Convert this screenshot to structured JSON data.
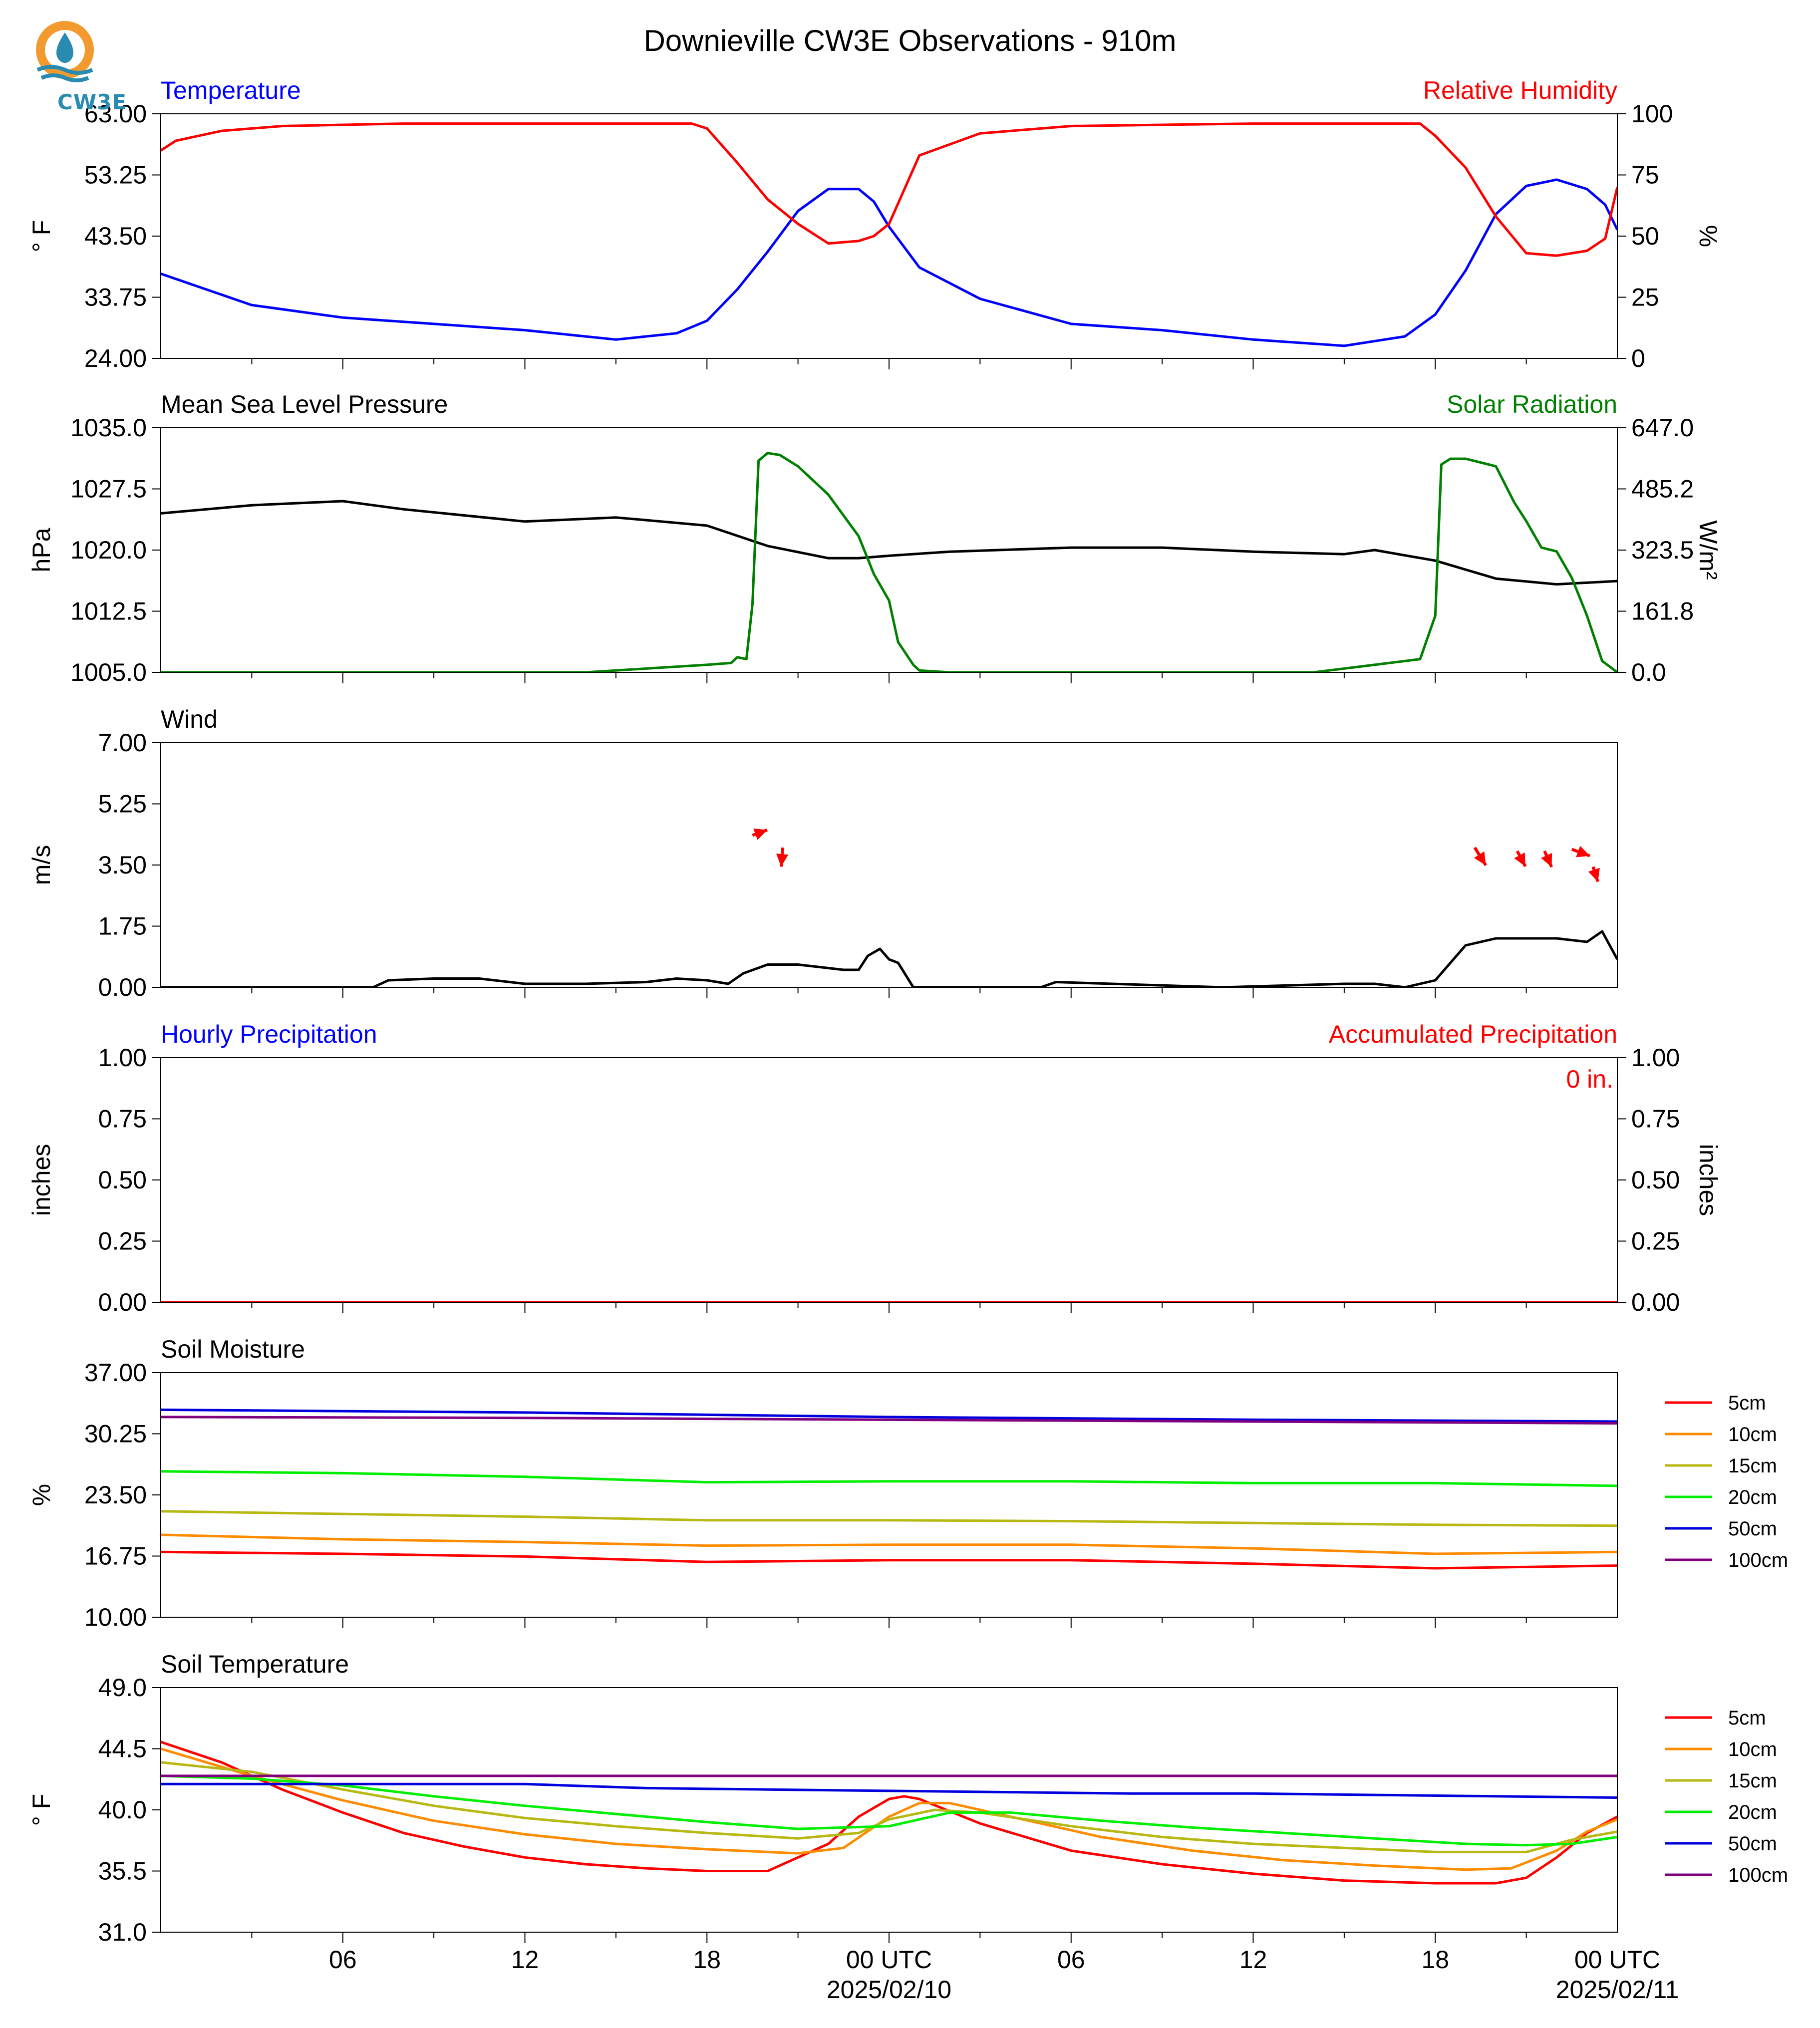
{
  "title": "Downieville CW3E Observations - 910m",
  "logo": {
    "text": "CW3E",
    "colors": {
      "sun": "#f29a2e",
      "wave": "#2a8bb0"
    }
  },
  "x_axis": {
    "ticks": [
      "06",
      "12",
      "18",
      "00 UTC",
      "06",
      "12",
      "18",
      "00 UTC"
    ],
    "dates": [
      "2025/02/10",
      "2025/02/11"
    ]
  },
  "chart_data": [
    {
      "type": "line",
      "title_left": "Temperature",
      "title_right": "Relative Humidity",
      "ylabel_left": "° F",
      "ylabel_right": "%",
      "ylim_left": [
        24,
        63
      ],
      "ylim_right": [
        0,
        100
      ],
      "yticks_left": [
        "63.00",
        "53.25",
        "43.50",
        "33.75",
        "24.00"
      ],
      "yticks_right": [
        "100",
        "75",
        "50",
        "25",
        "0"
      ],
      "series": [
        {
          "name": "Temperature",
          "axis": "left",
          "color": "#0000ff",
          "x_hours": [
            0,
            3,
            6,
            9,
            12,
            15,
            17,
            18,
            19,
            20,
            21,
            22,
            23,
            23.5,
            24,
            25,
            27,
            30,
            33,
            36,
            39,
            41,
            42,
            43,
            44,
            45,
            46,
            47,
            47.6,
            48
          ],
          "values": [
            37.5,
            32.5,
            30.5,
            29.5,
            28.5,
            27,
            28,
            30,
            35,
            41,
            47.5,
            51,
            51,
            49,
            45,
            38.5,
            33.5,
            29.5,
            28.5,
            27,
            26,
            27.5,
            31,
            38,
            47,
            51.5,
            52.5,
            51,
            48.5,
            44.5
          ]
        },
        {
          "name": "Relative Humidity",
          "axis": "right",
          "color": "#ff0000",
          "x_hours": [
            0,
            0.5,
            2,
            4,
            8,
            12,
            16,
            17.5,
            18,
            19,
            20,
            21,
            22,
            23,
            23.5,
            24,
            25,
            27,
            30,
            36,
            40,
            41.5,
            42,
            43,
            44,
            45,
            46,
            47,
            47.6,
            48
          ],
          "values": [
            85,
            89,
            93,
            95,
            96,
            96,
            96,
            96,
            94,
            80,
            65,
            55,
            47,
            48,
            50,
            55,
            83,
            92,
            95,
            96,
            96,
            96,
            91,
            78,
            58,
            43,
            42,
            44,
            49,
            70
          ]
        }
      ]
    },
    {
      "type": "line",
      "title_left": "Mean Sea Level Pressure",
      "title_right": "Solar Radiation",
      "ylabel_left": "hPa",
      "ylabel_right": "W/m²",
      "ylim_left": [
        1005,
        1035
      ],
      "ylim_right": [
        0,
        647
      ],
      "yticks_left": [
        "1035.0",
        "1027.5",
        "1020.0",
        "1012.5",
        "1005.0"
      ],
      "yticks_right": [
        "647.0",
        "485.2",
        "323.5",
        "161.8",
        "0.0"
      ],
      "series": [
        {
          "name": "Mean Sea Level Pressure",
          "axis": "left",
          "color": "#000000",
          "x_hours": [
            0,
            3,
            6,
            8,
            12,
            15,
            18,
            20,
            22,
            23,
            24,
            26,
            30,
            33,
            36,
            39,
            40,
            42,
            44,
            46,
            48
          ],
          "values": [
            1024.5,
            1025.5,
            1026,
            1025,
            1023.5,
            1024,
            1023,
            1020.5,
            1019,
            1019,
            1019.3,
            1019.8,
            1020.3,
            1020.3,
            1019.8,
            1019.5,
            1020,
            1018.7,
            1016.5,
            1015.8,
            1016.2
          ]
        },
        {
          "name": "Solar Radiation",
          "axis": "right",
          "color": "#008000",
          "x_hours": [
            0,
            14,
            16,
            18,
            18.8,
            19,
            19.3,
            19.5,
            19.7,
            20,
            20.4,
            21,
            22,
            23,
            23.5,
            24,
            24.3,
            24.8,
            25,
            26,
            38,
            40,
            41.5,
            42,
            42.2,
            42.5,
            43,
            44,
            44.6,
            45,
            45.5,
            46,
            46.5,
            47,
            47.5,
            48
          ],
          "values": [
            0,
            0,
            10,
            20,
            25,
            40,
            35,
            180,
            560,
            580,
            575,
            545,
            470,
            360,
            260,
            190,
            80,
            20,
            5,
            0,
            0,
            20,
            35,
            150,
            550,
            565,
            565,
            545,
            450,
            400,
            330,
            320,
            250,
            150,
            30,
            0
          ]
        }
      ]
    },
    {
      "type": "line",
      "title_left": "Wind",
      "ylabel_left": "m/s",
      "ylim_left": [
        0,
        7
      ],
      "yticks_left": [
        "7.00",
        "5.25",
        "3.50",
        "1.75",
        "0.00"
      ],
      "series": [
        {
          "name": "Wind speed",
          "axis": "left",
          "color": "#000000",
          "x_hours": [
            0,
            7,
            7.5,
            9,
            10.5,
            12,
            14,
            16,
            17,
            18,
            18.7,
            19.2,
            20,
            21,
            22,
            22.5,
            23,
            23.3,
            23.7,
            24,
            24.3,
            24.8,
            26,
            29,
            29.5,
            35,
            39,
            40,
            41,
            42,
            42.5,
            43,
            44,
            45,
            46,
            47,
            47.5,
            48
          ],
          "values": [
            0,
            0,
            0.2,
            0.25,
            0.25,
            0.1,
            0.1,
            0.15,
            0.25,
            0.2,
            0.1,
            0.4,
            0.65,
            0.65,
            0.55,
            0.5,
            0.5,
            0.9,
            1.1,
            0.8,
            0.7,
            0,
            0,
            0,
            0.15,
            0,
            0.1,
            0.1,
            0,
            0.2,
            0.7,
            1.2,
            1.4,
            1.4,
            1.4,
            1.3,
            1.6,
            0.8
          ]
        }
      ],
      "arrows": [
        {
          "x_hours": 19.5,
          "y": 4.35,
          "dir_deg": 20,
          "len": 0.45
        },
        {
          "x_hours": 20.5,
          "y": 4.0,
          "dir_deg": -95,
          "len": 0.55
        },
        {
          "x_hours": 43.3,
          "y": 4.0,
          "dir_deg": -58,
          "len": 0.6
        },
        {
          "x_hours": 44.7,
          "y": 3.9,
          "dir_deg": -62,
          "len": 0.5
        },
        {
          "x_hours": 45.6,
          "y": 3.9,
          "dir_deg": -66,
          "len": 0.5
        },
        {
          "x_hours": 46.5,
          "y": 3.95,
          "dir_deg": -20,
          "len": 0.55
        },
        {
          "x_hours": 47.2,
          "y": 3.45,
          "dir_deg": -72,
          "len": 0.45
        }
      ]
    },
    {
      "type": "line",
      "title_left": "Hourly Precipitation",
      "title_right": "Accumulated Precipitation",
      "ylabel_left": "inches",
      "ylabel_right": "inches",
      "ylim_left": [
        0,
        1
      ],
      "ylim_right": [
        0,
        1
      ],
      "yticks_left": [
        "1.00",
        "0.75",
        "0.50",
        "0.25",
        "0.00"
      ],
      "yticks_right": [
        "1.00",
        "0.75",
        "0.50",
        "0.25",
        "0.00"
      ],
      "annotation": "0 in.",
      "series": [
        {
          "name": "Accumulated Precipitation",
          "axis": "right",
          "color": "#ff0000",
          "x_hours": [
            0,
            48
          ],
          "values": [
            0,
            0
          ]
        }
      ]
    },
    {
      "type": "line",
      "title_left": "Soil Moisture",
      "ylabel_left": "%",
      "ylim_left": [
        10,
        37
      ],
      "yticks_left": [
        "37.00",
        "30.25",
        "23.50",
        "16.75",
        "10.00"
      ],
      "legend_placement": "right",
      "series": [
        {
          "name": "5cm",
          "color": "#ff0000",
          "x_hours": [
            0,
            6,
            12,
            18,
            24,
            30,
            36,
            42,
            48
          ],
          "values": [
            17.2,
            17,
            16.7,
            16.1,
            16.3,
            16.3,
            15.9,
            15.4,
            15.7
          ]
        },
        {
          "name": "10cm",
          "color": "#ff8c00",
          "x_hours": [
            0,
            6,
            12,
            18,
            24,
            30,
            36,
            42,
            48
          ],
          "values": [
            19.1,
            18.6,
            18.3,
            17.9,
            18,
            18,
            17.6,
            17,
            17.2
          ]
        },
        {
          "name": "15cm",
          "color": "#b8b814",
          "x_hours": [
            0,
            6,
            12,
            18,
            24,
            30,
            36,
            42,
            48
          ],
          "values": [
            21.7,
            21.4,
            21.1,
            20.7,
            20.7,
            20.6,
            20.4,
            20.2,
            20.1
          ]
        },
        {
          "name": "20cm",
          "color": "#00ee00",
          "x_hours": [
            0,
            6,
            12,
            18,
            24,
            30,
            36,
            42,
            48
          ],
          "values": [
            26.1,
            25.9,
            25.5,
            24.9,
            25,
            25,
            24.8,
            24.8,
            24.5
          ]
        },
        {
          "name": "50cm",
          "color": "#0000dd",
          "x_hours": [
            0,
            12,
            24,
            36,
            48
          ],
          "values": [
            32.9,
            32.6,
            32.1,
            31.8,
            31.6
          ]
        },
        {
          "name": "100cm",
          "color": "#800080",
          "x_hours": [
            0,
            12,
            24,
            36,
            48
          ],
          "values": [
            32.1,
            32,
            31.8,
            31.6,
            31.4
          ]
        }
      ]
    },
    {
      "type": "line",
      "title_left": "Soil Temperature",
      "ylabel_left": "° F",
      "ylim_left": [
        31,
        49
      ],
      "yticks_left": [
        "49.0",
        "44.5",
        "40.0",
        "35.5",
        "31.0"
      ],
      "legend_placement": "right",
      "series": [
        {
          "name": "5cm",
          "color": "#ff0000",
          "x_hours": [
            0,
            2,
            4,
            6,
            8,
            10,
            12,
            14,
            16,
            18,
            20,
            22,
            23,
            24,
            24.5,
            25,
            27,
            30,
            33,
            36,
            39,
            42,
            44,
            45,
            46,
            47,
            48
          ],
          "values": [
            45,
            43.5,
            41.5,
            39.8,
            38.3,
            37.3,
            36.5,
            36,
            35.7,
            35.5,
            35.5,
            37.5,
            39.5,
            40.8,
            41,
            40.8,
            39,
            37,
            36,
            35.3,
            34.8,
            34.6,
            34.6,
            35,
            36.5,
            38.3,
            39.5
          ]
        },
        {
          "name": "10cm",
          "color": "#ff8c00",
          "x_hours": [
            0,
            3,
            6,
            9,
            12,
            15,
            18,
            21,
            22.5,
            24,
            25,
            26,
            28,
            31,
            34,
            37,
            40,
            43,
            44.5,
            46,
            47,
            48
          ],
          "values": [
            44.5,
            42.5,
            40.7,
            39.2,
            38.2,
            37.5,
            37.1,
            36.8,
            37.2,
            39.5,
            40.5,
            40.5,
            39.5,
            38,
            37,
            36.3,
            35.9,
            35.6,
            35.7,
            37,
            38.4,
            39.3
          ]
        },
        {
          "name": "15cm",
          "color": "#b8b814",
          "x_hours": [
            0,
            3,
            6,
            9,
            12,
            15,
            18,
            21,
            23,
            24,
            25.5,
            27,
            30,
            33,
            36,
            39,
            42,
            45,
            46.5,
            48
          ],
          "values": [
            43.5,
            42.8,
            41.5,
            40.3,
            39.4,
            38.8,
            38.3,
            37.9,
            38.3,
            39.3,
            40,
            39.8,
            38.8,
            38,
            37.5,
            37.2,
            36.9,
            36.9,
            37.8,
            38.4
          ]
        },
        {
          "name": "20cm",
          "color": "#00ee00",
          "x_hours": [
            0,
            3,
            6,
            9,
            12,
            15,
            18,
            21,
            24,
            26,
            28,
            31,
            34,
            37,
            40,
            43,
            45,
            46.5,
            48
          ],
          "values": [
            42.5,
            42.3,
            41.8,
            41,
            40.3,
            39.7,
            39.1,
            38.6,
            38.8,
            39.8,
            39.8,
            39.2,
            38.7,
            38.3,
            37.9,
            37.5,
            37.4,
            37.5,
            38
          ]
        },
        {
          "name": "50cm",
          "color": "#0000dd",
          "x_hours": [
            0,
            4,
            8,
            12,
            16,
            20,
            24,
            28,
            32,
            36,
            40,
            44,
            48
          ],
          "values": [
            41.9,
            41.9,
            41.9,
            41.9,
            41.6,
            41.5,
            41.4,
            41.3,
            41.2,
            41.2,
            41.1,
            41,
            40.9
          ]
        },
        {
          "name": "100cm",
          "color": "#800080",
          "x_hours": [
            0,
            24,
            48
          ],
          "values": [
            42.5,
            42.5,
            42.5
          ]
        }
      ]
    }
  ]
}
